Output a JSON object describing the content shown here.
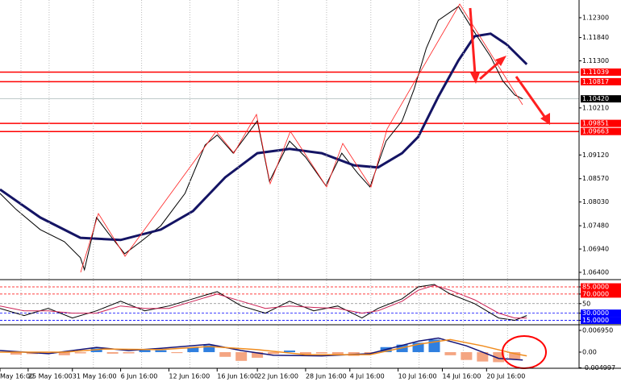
{
  "chart_data": [
    {
      "type": "line",
      "xlim": [
        0,
        144
      ],
      "ylim": [
        1.0625,
        1.1271
      ],
      "yticks": [
        {
          "value": 1.123,
          "label": "1.12300"
        },
        {
          "value": 1.1184,
          "label": "1.11840"
        },
        {
          "value": 1.113,
          "label": "1.11300"
        },
        {
          "value": 1.1021,
          "label": "1.10210"
        },
        {
          "value": 1.0912,
          "label": "1.09120"
        },
        {
          "value": 1.0857,
          "label": "1.08570"
        },
        {
          "value": 1.0803,
          "label": "1.08030"
        },
        {
          "value": 1.0748,
          "label": "1.07480"
        },
        {
          "value": 1.0694,
          "label": "1.06940"
        },
        {
          "value": 1.064,
          "label": "1.06400"
        }
      ],
      "levels": [
        1.11039,
        1.10817,
        1.09851,
        1.09663
      ],
      "level_color": "#ff0000",
      "current": {
        "value": 1.1042,
        "label": "1.10420"
      },
      "series": [
        {
          "color": "#000000",
          "width": 1,
          "x": [
            0,
            4,
            10,
            16,
            20,
            21,
            24,
            27,
            31,
            35,
            40,
            46,
            51,
            54,
            58,
            64,
            67,
            72,
            76,
            81,
            85,
            89,
            92,
            96,
            100,
            103,
            106,
            109,
            114,
            118,
            122,
            125,
            128,
            130
          ],
          "values": [
            1.0823,
            1.0786,
            1.0739,
            1.0711,
            1.0674,
            1.0646,
            1.0767,
            1.073,
            1.0683,
            1.0711,
            1.0748,
            1.0823,
            1.0935,
            1.0958,
            1.0916,
            1.0991,
            1.0851,
            1.0944,
            1.0907,
            1.0841,
            1.0916,
            1.0869,
            1.0838,
            1.0944,
            1.0991,
            1.1065,
            1.1159,
            1.1224,
            1.1256,
            1.1196,
            1.114,
            1.1084,
            1.1051,
            1.1042
          ]
        },
        {
          "color": "#141464",
          "width": 3,
          "x": [
            0,
            10,
            20,
            30,
            40,
            48,
            56,
            64,
            72,
            80,
            88,
            94,
            100,
            104,
            109,
            114,
            118,
            122,
            126,
            131
          ],
          "values": [
            1.0832,
            1.0767,
            1.072,
            1.0715,
            1.0739,
            1.0782,
            1.086,
            1.0916,
            1.0926,
            1.0916,
            1.0888,
            1.0883,
            1.0916,
            1.0954,
            1.1047,
            1.1131,
            1.1187,
            1.1193,
            1.1168,
            1.1122
          ]
        }
      ]
    },
    {
      "type": "line",
      "xlim": [
        0,
        144
      ],
      "ylim": [
        7.5,
        98.5
      ],
      "yticks": [
        {
          "value": 85,
          "label": "85.0000"
        },
        {
          "value": 70,
          "label": "70.0000"
        },
        50,
        {
          "value": 30,
          "label": "30.0000"
        },
        {
          "value": 15,
          "label": "15.0000"
        }
      ],
      "tick_colors": [
        "#ff0000",
        "#ff0000",
        "#888888",
        "#0000ff",
        "#0000ff"
      ],
      "series": [
        {
          "color": "#000000",
          "width": 1,
          "x": [
            0,
            6,
            12,
            18,
            24,
            30,
            36,
            42,
            48,
            54,
            60,
            66,
            72,
            78,
            84,
            90,
            94,
            100,
            104,
            108,
            112,
            118,
            124,
            128,
            131
          ],
          "values": [
            40,
            25,
            40,
            20,
            35,
            55,
            35,
            45,
            60,
            75,
            45,
            30,
            55,
            35,
            45,
            20,
            40,
            60,
            85,
            90,
            70,
            50,
            20,
            15,
            25
          ]
        },
        {
          "color": "#cc2255",
          "width": 1,
          "x": [
            0,
            6,
            12,
            18,
            24,
            30,
            36,
            42,
            48,
            54,
            60,
            66,
            72,
            78,
            84,
            90,
            94,
            100,
            104,
            108,
            112,
            118,
            124,
            128,
            131
          ],
          "values": [
            45,
            35,
            35,
            30,
            30,
            45,
            40,
            40,
            55,
            70,
            55,
            40,
            45,
            42,
            40,
            30,
            35,
            55,
            78,
            88,
            78,
            58,
            30,
            20,
            20
          ]
        }
      ]
    },
    {
      "type": "macd",
      "xlim": [
        0,
        144
      ],
      "ylim": [
        -0.0049,
        0.00849
      ],
      "yticks": [
        {
          "value": 0.00695,
          "label": "0.006950"
        },
        {
          "value": 0,
          "label": "0.00"
        },
        {
          "value": -0.004997,
          "label": "-0.004997"
        }
      ],
      "xticks": [
        {
          "value": 0,
          "label": "May 16:00"
        },
        {
          "value": 7,
          "label": "25 May 16:00"
        },
        {
          "value": 18,
          "label": "31 May 16:00"
        },
        {
          "value": 30,
          "label": "6 Jun 16:00"
        },
        {
          "value": 42,
          "label": "12 Jun 16:00"
        },
        {
          "value": 54,
          "label": "16 Jun 16:00"
        },
        {
          "value": 64,
          "label": "22 Jun 16:00"
        },
        {
          "value": 76,
          "label": "28 Jun 16:00"
        },
        {
          "value": 87,
          "label": "4 Jul 16:00"
        },
        {
          "value": 99,
          "label": "10 Jul 16:00"
        },
        {
          "value": 110,
          "label": "14 Jul 16:00"
        },
        {
          "value": 121,
          "label": "20 Jul 16:00"
        }
      ],
      "bars": {
        "pos_color": "#2f7fe0",
        "neg_color": "#f4a582",
        "x": [
          4,
          8,
          12,
          16,
          20,
          24,
          28,
          32,
          36,
          40,
          44,
          48,
          52,
          56,
          60,
          64,
          68,
          72,
          76,
          80,
          84,
          88,
          92,
          96,
          100,
          104,
          108,
          112,
          116,
          120,
          124,
          128
        ],
        "values": [
          -0.0008,
          -0.0006,
          -0.0005,
          -0.001,
          -0.0004,
          0.0012,
          -0.0005,
          -0.0004,
          0.0008,
          0.0006,
          -0.0003,
          0.0015,
          0.0022,
          -0.0015,
          -0.0028,
          -0.0018,
          -0.0006,
          0.0005,
          -0.0008,
          -0.0004,
          -0.001,
          -0.0012,
          -0.0006,
          0.0016,
          0.0024,
          0.003,
          0.004,
          -0.001,
          -0.0025,
          -0.003,
          -0.0032,
          -0.0022
        ]
      },
      "series": [
        {
          "color": "#141478",
          "width": 1.5,
          "x": [
            0,
            12,
            24,
            32,
            40,
            52,
            60,
            68,
            80,
            92,
            104,
            109,
            116,
            124,
            130
          ],
          "values": [
            0.0005,
            -0.0005,
            0.0015,
            0.0005,
            0.0012,
            0.0025,
            0.0005,
            -0.001,
            -0.0012,
            -0.0005,
            0.0035,
            0.0045,
            0.002,
            -0.002,
            -0.0025
          ]
        },
        {
          "color": "#f08c1e",
          "width": 1.5,
          "x": [
            0,
            16,
            26,
            40,
            52,
            64,
            76,
            92,
            104,
            112,
            120,
            128,
            131
          ],
          "values": [
            0,
            0,
            0.001,
            0.0008,
            0.0018,
            0.0008,
            -0.0008,
            -0.0008,
            0.0025,
            0.004,
            0.002,
            -0.0005,
            -0.0012
          ]
        }
      ]
    }
  ]
}
